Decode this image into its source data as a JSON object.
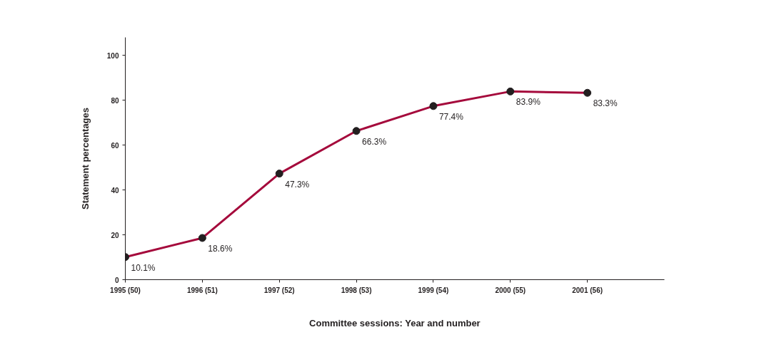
{
  "chart_data": {
    "type": "line",
    "xlabel": "Committee sessions: Year and number",
    "ylabel": "Statement percentages",
    "categories": [
      "1995 (50)",
      "1996 (51)",
      "1997 (52)",
      "1998 (53)",
      "1999 (54)",
      "2000 (55)",
      "2001 (56)"
    ],
    "series": [
      {
        "color": "#a50a3c",
        "values": [
          10.1,
          18.6,
          47.3,
          66.3,
          77.4,
          83.9,
          83.3
        ],
        "value_labels": [
          "10.1%",
          "18.6%",
          "47.3%",
          "66.3%",
          "77.4%",
          "83.9%",
          "83.3%"
        ]
      }
    ],
    "ylim": [
      0,
      108
    ],
    "yticks": [
      0,
      20,
      40,
      60,
      80,
      100
    ],
    "grid": false,
    "marker": "circle",
    "line_style": "solid"
  }
}
